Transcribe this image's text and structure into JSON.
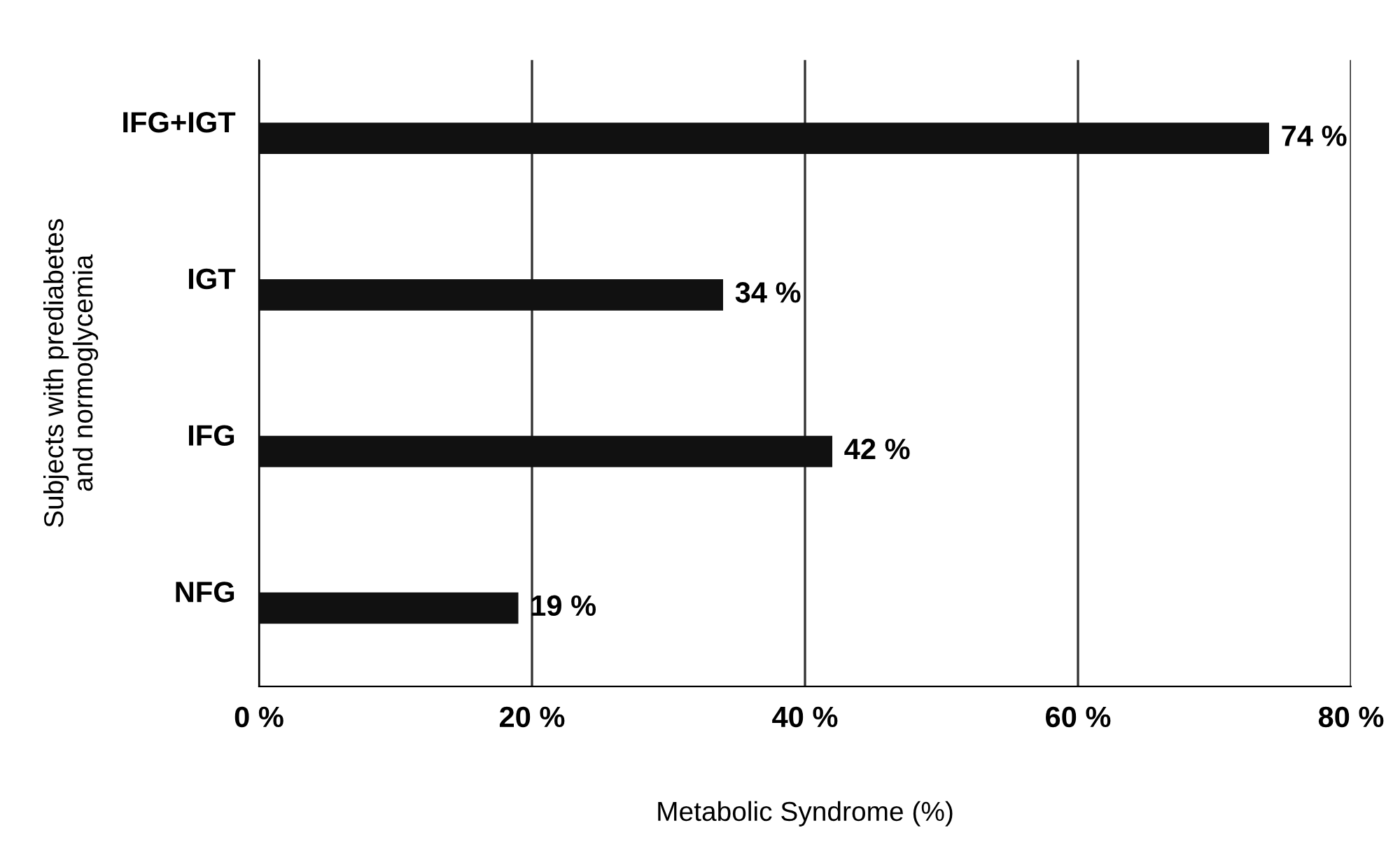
{
  "chart_data": {
    "type": "bar",
    "orientation": "horizontal",
    "categories": [
      "IFG+IGT",
      "IGT",
      "IFG",
      "NFG"
    ],
    "values": [
      74,
      34,
      42,
      19
    ],
    "value_labels": [
      "74 %",
      "34 %",
      "42 %",
      "19 %"
    ],
    "color": "#111111",
    "xlim": [
      0,
      80
    ],
    "xticks": [
      {
        "value": 0,
        "label": "0 %"
      },
      {
        "value": 20,
        "label": "20 %"
      },
      {
        "value": 40,
        "label": "40 %"
      },
      {
        "value": 60,
        "label": "60 %"
      },
      {
        "value": 80,
        "label": "80 %"
      }
    ],
    "xlabel": "Metabolic Syndrome (%)",
    "ylabel": "Subjects with prediabetes\nand normoglycemia",
    "grid": "x",
    "legend": false
  }
}
